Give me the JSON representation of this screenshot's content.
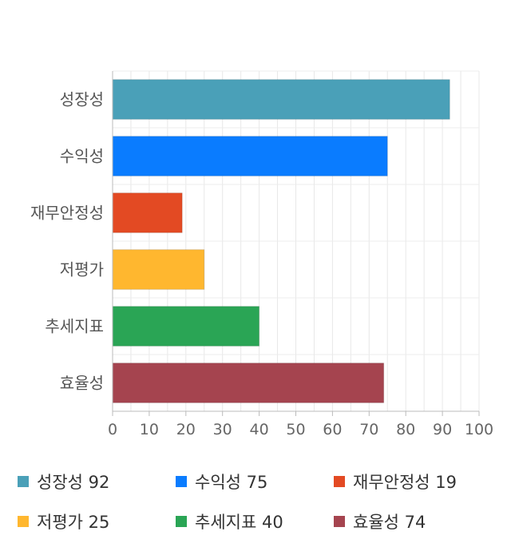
{
  "chart_data": {
    "type": "bar",
    "orientation": "horizontal",
    "categories": [
      "성장성",
      "수익성",
      "재무안정성",
      "저평가",
      "추세지표",
      "효율성"
    ],
    "values": [
      92,
      75,
      19,
      25,
      40,
      74
    ],
    "colors": [
      "#4aa0b8",
      "#0a7cff",
      "#e34a23",
      "#ffb72f",
      "#2aa555",
      "#a5444f"
    ],
    "xlim": [
      0,
      100
    ],
    "xticks": [
      0,
      10,
      20,
      30,
      40,
      50,
      60,
      70,
      80,
      90,
      100
    ],
    "grid": true,
    "legend_position": "bottom"
  },
  "legend": {
    "items": [
      {
        "label": "성장성 92",
        "color": "#4aa0b8"
      },
      {
        "label": "수익성 75",
        "color": "#0a7cff"
      },
      {
        "label": "재무안정성 19",
        "color": "#e34a23"
      },
      {
        "label": "저평가 25",
        "color": "#ffb72f"
      },
      {
        "label": "추세지표 40",
        "color": "#2aa555"
      },
      {
        "label": "효율성 74",
        "color": "#a5444f"
      }
    ]
  }
}
